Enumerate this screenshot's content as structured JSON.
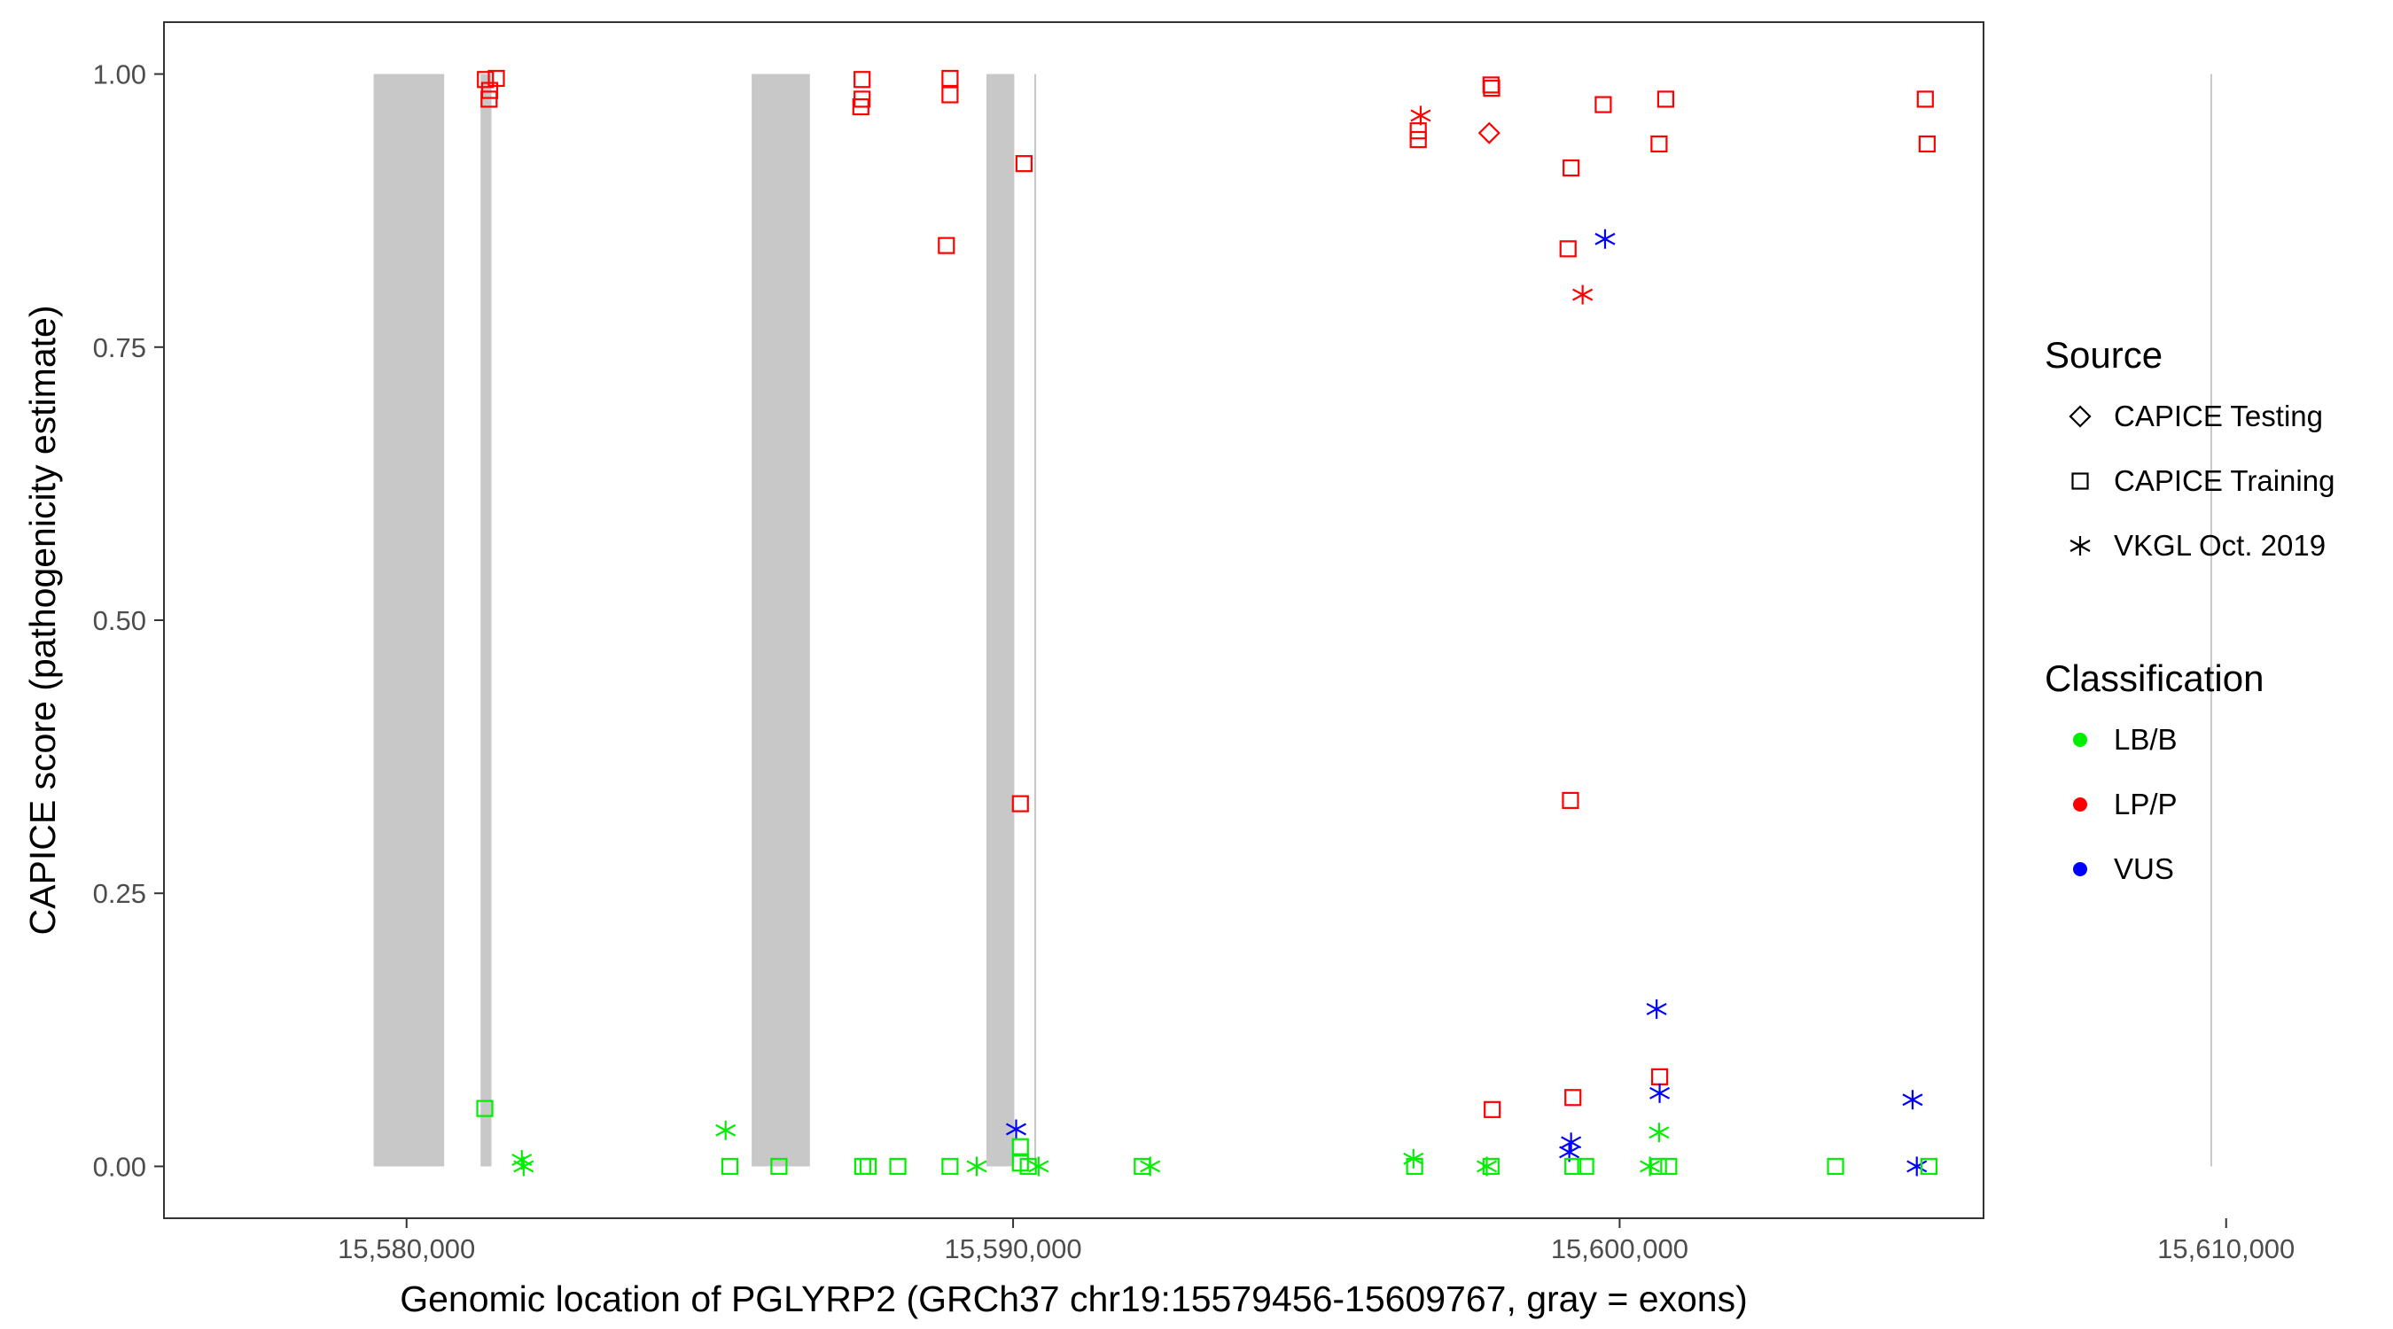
{
  "chart_data": {
    "type": "scatter",
    "title": "",
    "xlabel": "Genomic location of PGLYRP2 (GRCh37 chr19:15579456-15609767, gray = exons)",
    "ylabel": "CAPICE score (pathogenicity estimate)",
    "xlim": [
      15576000,
      15606000
    ],
    "ylim": [
      -0.0475,
      1.0475
    ],
    "x_ticks": [
      15580000,
      15590000,
      15600000,
      15610000
    ],
    "x_tick_labels": [
      "15,580,000",
      "15,590,000",
      "15,600,000",
      "15,610,000"
    ],
    "y_ticks": [
      0,
      0.25,
      0.5,
      0.75,
      1.0
    ],
    "y_tick_labels": [
      "0.00",
      "0.25",
      "0.50",
      "0.75",
      "1.00"
    ],
    "grid": false,
    "exons": [
      [
        15579456,
        15580620
      ],
      [
        15581220,
        15581400
      ],
      [
        15585690,
        15586650
      ],
      [
        15589560,
        15590020
      ],
      [
        15590350,
        15590380
      ],
      [
        15609740,
        15609767
      ]
    ],
    "legend": {
      "placement": "right",
      "source_title": "Source",
      "source_items": [
        {
          "label": "CAPICE Testing",
          "shape": "diamond"
        },
        {
          "label": "CAPICE Training",
          "shape": "square"
        },
        {
          "label": "VKGL Oct. 2019",
          "shape": "asterisk"
        }
      ],
      "class_title": "Classification",
      "class_items": [
        {
          "label": "LB/B",
          "color": "#00ee00"
        },
        {
          "label": "LP/P",
          "color": "#ff0000"
        },
        {
          "label": "VUS",
          "color": "#0000ff"
        }
      ]
    },
    "series": [
      {
        "name": "LP/P",
        "color": "#ff0000",
        "points": [
          {
            "x": 15581300,
            "y": 0.995,
            "shape": "square"
          },
          {
            "x": 15581480,
            "y": 0.996,
            "shape": "square"
          },
          {
            "x": 15581370,
            "y": 0.985,
            "shape": "square"
          },
          {
            "x": 15581360,
            "y": 0.977,
            "shape": "square"
          },
          {
            "x": 15587510,
            "y": 0.995,
            "shape": "square"
          },
          {
            "x": 15587510,
            "y": 0.977,
            "shape": "square"
          },
          {
            "x": 15587490,
            "y": 0.97,
            "shape": "square"
          },
          {
            "x": 15588960,
            "y": 0.996,
            "shape": "square"
          },
          {
            "x": 15588960,
            "y": 0.981,
            "shape": "square"
          },
          {
            "x": 15588900,
            "y": 0.843,
            "shape": "square"
          },
          {
            "x": 15590180,
            "y": 0.918,
            "shape": "square"
          },
          {
            "x": 15590120,
            "y": 0.332,
            "shape": "square"
          },
          {
            "x": 15596720,
            "y": 0.962,
            "shape": "asterisk"
          },
          {
            "x": 15596680,
            "y": 0.948,
            "shape": "square"
          },
          {
            "x": 15596680,
            "y": 0.94,
            "shape": "square"
          },
          {
            "x": 15597880,
            "y": 0.99,
            "shape": "square"
          },
          {
            "x": 15597890,
            "y": 0.987,
            "shape": "square"
          },
          {
            "x": 15597850,
            "y": 0.946,
            "shape": "diamond"
          },
          {
            "x": 15599200,
            "y": 0.914,
            "shape": "square"
          },
          {
            "x": 15599150,
            "y": 0.84,
            "shape": "square"
          },
          {
            "x": 15599730,
            "y": 0.972,
            "shape": "square"
          },
          {
            "x": 15599390,
            "y": 0.798,
            "shape": "asterisk"
          },
          {
            "x": 15600760,
            "y": 0.977,
            "shape": "square"
          },
          {
            "x": 15600650,
            "y": 0.936,
            "shape": "square"
          },
          {
            "x": 15605040,
            "y": 0.977,
            "shape": "square"
          },
          {
            "x": 15605070,
            "y": 0.936,
            "shape": "square"
          },
          {
            "x": 15599190,
            "y": 0.335,
            "shape": "square"
          },
          {
            "x": 15597900,
            "y": 0.052,
            "shape": "square"
          },
          {
            "x": 15599230,
            "y": 0.063,
            "shape": "square"
          },
          {
            "x": 15600660,
            "y": 0.082,
            "shape": "square"
          }
        ]
      },
      {
        "name": "VUS",
        "color": "#0000ff",
        "points": [
          {
            "x": 15599760,
            "y": 0.849,
            "shape": "asterisk"
          },
          {
            "x": 15600610,
            "y": 0.144,
            "shape": "asterisk"
          },
          {
            "x": 15600660,
            "y": 0.067,
            "shape": "asterisk"
          },
          {
            "x": 15604830,
            "y": 0.061,
            "shape": "asterisk"
          },
          {
            "x": 15590050,
            "y": 0.034,
            "shape": "asterisk"
          },
          {
            "x": 15599200,
            "y": 0.022,
            "shape": "asterisk"
          },
          {
            "x": 15599170,
            "y": 0.013,
            "shape": "asterisk"
          },
          {
            "x": 15604900,
            "y": 0.0,
            "shape": "asterisk"
          }
        ]
      },
      {
        "name": "LB/B",
        "color": "#00ee00",
        "points": [
          {
            "x": 15581290,
            "y": 0.053,
            "shape": "square"
          },
          {
            "x": 15581900,
            "y": 0.006,
            "shape": "asterisk"
          },
          {
            "x": 15581930,
            "y": 0.0,
            "shape": "asterisk"
          },
          {
            "x": 15585260,
            "y": 0.033,
            "shape": "asterisk"
          },
          {
            "x": 15585330,
            "y": 0.0,
            "shape": "square"
          },
          {
            "x": 15586140,
            "y": 0.0,
            "shape": "square"
          },
          {
            "x": 15587520,
            "y": 0.0,
            "shape": "square"
          },
          {
            "x": 15587610,
            "y": 0.0,
            "shape": "square"
          },
          {
            "x": 15588100,
            "y": 0.0,
            "shape": "square"
          },
          {
            "x": 15588960,
            "y": 0.0,
            "shape": "square"
          },
          {
            "x": 15589400,
            "y": 0.0,
            "shape": "asterisk"
          },
          {
            "x": 15590120,
            "y": 0.018,
            "shape": "square"
          },
          {
            "x": 15590120,
            "y": 0.003,
            "shape": "square"
          },
          {
            "x": 15590250,
            "y": 0.0,
            "shape": "square"
          },
          {
            "x": 15590420,
            "y": 0.0,
            "shape": "asterisk"
          },
          {
            "x": 15592130,
            "y": 0.0,
            "shape": "square"
          },
          {
            "x": 15592260,
            "y": 0.0,
            "shape": "asterisk"
          },
          {
            "x": 15596600,
            "y": 0.007,
            "shape": "asterisk"
          },
          {
            "x": 15596620,
            "y": 0.0,
            "shape": "square"
          },
          {
            "x": 15597810,
            "y": 0.0,
            "shape": "asterisk"
          },
          {
            "x": 15597880,
            "y": 0.0,
            "shape": "square"
          },
          {
            "x": 15599230,
            "y": 0.0,
            "shape": "square"
          },
          {
            "x": 15599440,
            "y": 0.0,
            "shape": "square"
          },
          {
            "x": 15600650,
            "y": 0.031,
            "shape": "asterisk"
          },
          {
            "x": 15600500,
            "y": 0.0,
            "shape": "asterisk"
          },
          {
            "x": 15600640,
            "y": 0.0,
            "shape": "square"
          },
          {
            "x": 15600810,
            "y": 0.0,
            "shape": "square"
          },
          {
            "x": 15603560,
            "y": 0.0,
            "shape": "square"
          },
          {
            "x": 15605100,
            "y": 0.0,
            "shape": "square"
          }
        ]
      }
    ]
  }
}
